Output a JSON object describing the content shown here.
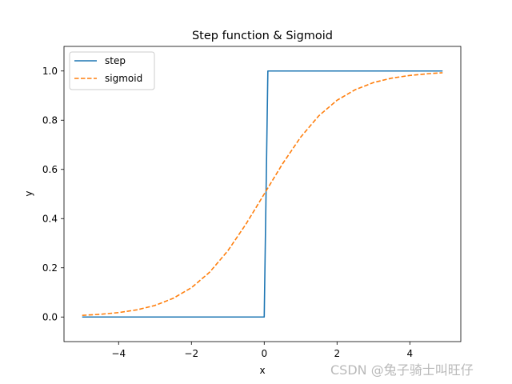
{
  "chart_data": {
    "type": "line",
    "title": "Step function & Sigmoid",
    "xlabel": "x",
    "ylabel": "y",
    "xlim": [
      -5.5,
      5.4
    ],
    "ylim": [
      -0.1,
      1.1
    ],
    "xticks": [
      -4,
      -2,
      0,
      2,
      4
    ],
    "xtick_labels": [
      "−4",
      "−2",
      "0",
      "2",
      "4"
    ],
    "yticks": [
      0.0,
      0.2,
      0.4,
      0.6,
      0.8,
      1.0
    ],
    "ytick_labels": [
      "0.0",
      "0.2",
      "0.4",
      "0.6",
      "0.8",
      "1.0"
    ],
    "grid": false,
    "legend_position": "top-left",
    "series": [
      {
        "name": "step",
        "color": "#1f77b4",
        "style": "solid",
        "x": [
          -5.0,
          0.0,
          0.1,
          4.9
        ],
        "y": [
          0,
          0,
          1,
          1
        ]
      },
      {
        "name": "sigmoid",
        "color": "#ff7f0e",
        "style": "dashed",
        "x": [
          -5,
          -4.5,
          -4,
          -3.5,
          -3,
          -2.5,
          -2,
          -1.5,
          -1,
          -0.5,
          0,
          0.5,
          1,
          1.5,
          2,
          2.5,
          3,
          3.5,
          4,
          4.5,
          4.9
        ],
        "y": [
          0.0067,
          0.011,
          0.018,
          0.029,
          0.047,
          0.076,
          0.119,
          0.182,
          0.269,
          0.378,
          0.5,
          0.622,
          0.731,
          0.818,
          0.881,
          0.924,
          0.953,
          0.971,
          0.982,
          0.989,
          0.993
        ]
      }
    ]
  },
  "watermark": "CSDN @兔子骑士叫旺仔"
}
